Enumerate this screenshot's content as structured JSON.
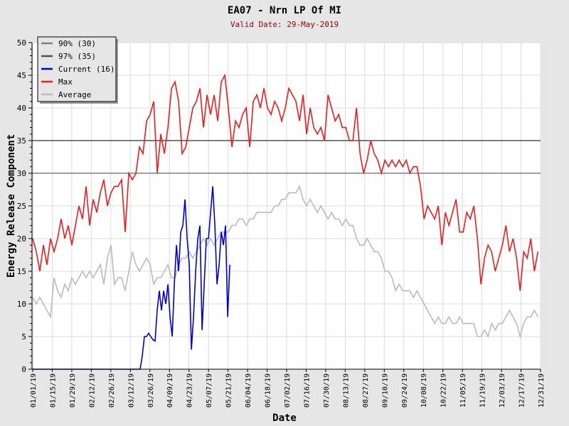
{
  "chart_data": {
    "type": "line",
    "title": "EA07 - Nrn LP Of MI",
    "subtitle": "Valid Date: 29-May-2019",
    "xlabel": "Date",
    "ylabel": "Energy Release Component",
    "ylim": [
      0,
      50
    ],
    "xlim_days": [
      0,
      364
    ],
    "yticks": [
      "0",
      "5",
      "10",
      "15",
      "20",
      "25",
      "30",
      "35",
      "40",
      "45",
      "50"
    ],
    "xticks": [
      "01/01/19",
      "01/15/19",
      "01/29/19",
      "02/12/19",
      "02/26/19",
      "03/12/19",
      "03/26/19",
      "04/09/19",
      "04/23/19",
      "05/07/19",
      "05/21/19",
      "06/04/19",
      "06/18/19",
      "07/02/19",
      "07/16/19",
      "07/30/19",
      "08/13/19",
      "08/27/19",
      "09/10/19",
      "09/24/19",
      "10/08/19",
      "10/22/19",
      "11/05/19",
      "11/19/19",
      "12/03/19",
      "12/17/19",
      "12/31/19"
    ],
    "grid": true,
    "legend_position": "top-left",
    "thresholds": [
      {
        "name": "90% (30)",
        "value": 30,
        "color": "#808080"
      },
      {
        "name": "97% (35)",
        "value": 35,
        "color": "#505050"
      }
    ],
    "series": [
      {
        "name": "Current (16)",
        "color": "#0000dd",
        "start_day": 77,
        "step_days": 1.53,
        "lead": [
          [
            0,
            0
          ],
          [
            77,
            0
          ]
        ],
        "values": [
          0,
          2,
          5,
          5,
          5.5,
          5,
          4.5,
          4.3,
          9,
          12,
          9,
          12,
          10,
          13,
          8,
          5,
          13,
          19,
          15,
          21,
          22,
          26,
          20,
          16,
          3,
          8,
          15,
          20,
          22,
          6,
          13,
          20,
          20,
          24,
          28,
          22,
          13,
          16,
          21,
          19,
          22,
          8,
          16
        ]
      },
      {
        "name": "Max",
        "color": "#ee1c1c",
        "start_day": 0,
        "step_days": 2.55,
        "values": [
          20,
          18,
          15,
          19,
          16,
          20,
          18,
          20,
          23,
          20,
          22,
          19,
          22,
          25,
          23,
          28,
          22,
          26,
          24,
          27,
          29,
          25,
          27,
          28,
          28,
          29,
          21,
          30,
          29,
          30,
          34,
          33,
          38,
          39,
          41,
          30,
          36,
          33,
          37,
          43,
          44,
          41,
          33,
          34,
          37,
          40,
          41,
          43,
          37,
          42,
          39,
          42,
          38,
          44,
          45,
          40,
          34,
          38,
          37,
          39,
          40,
          34,
          41,
          42,
          40,
          43,
          40,
          39,
          41,
          40,
          38,
          40,
          43,
          42,
          41,
          38,
          42,
          36,
          40,
          37,
          36,
          37,
          35,
          42,
          40,
          38,
          39,
          37,
          37,
          35,
          35,
          40,
          33,
          30,
          32,
          35,
          33,
          32,
          30,
          32,
          31,
          32,
          31,
          32,
          31,
          32,
          30,
          31,
          31,
          28,
          23,
          25,
          24,
          23,
          25,
          19,
          24,
          22,
          24,
          26,
          21,
          21,
          24,
          23,
          25,
          20,
          13,
          17,
          19,
          18,
          15,
          17,
          19,
          22,
          18,
          20,
          17,
          12,
          18,
          17,
          20,
          15,
          18
        ]
      },
      {
        "name": "Average",
        "color": "#bbbbbb",
        "start_day": 0,
        "step_days": 2.55,
        "values": [
          11,
          10,
          11,
          10,
          9,
          8,
          14,
          12,
          11,
          13,
          12,
          14,
          13,
          14,
          15,
          14,
          15,
          14,
          15,
          16,
          13,
          17,
          19,
          13,
          14,
          14,
          12,
          15,
          18,
          16,
          15,
          16,
          17,
          16,
          13,
          14,
          14,
          15,
          16,
          14,
          14,
          16,
          17,
          17,
          18,
          17,
          18,
          19,
          20,
          19,
          20,
          19,
          20,
          21,
          21,
          21,
          22,
          22,
          23,
          23,
          22,
          23,
          23,
          24,
          24,
          24,
          24,
          24,
          25,
          25,
          26,
          26,
          27,
          27,
          27,
          28,
          26,
          25,
          26,
          25,
          24,
          25,
          24,
          23,
          24,
          23,
          23,
          22,
          23,
          22,
          22,
          20,
          19,
          19,
          20,
          19,
          18,
          18,
          17,
          15,
          15,
          14,
          12,
          13,
          12,
          12,
          12,
          11,
          12,
          11,
          10,
          9,
          8,
          7,
          8,
          7,
          7,
          8,
          7,
          7,
          8,
          7,
          7,
          7,
          7,
          5,
          5,
          6,
          5,
          7,
          6,
          7,
          7,
          8,
          9,
          8,
          7,
          5,
          7,
          8,
          8,
          9,
          8
        ]
      }
    ]
  }
}
